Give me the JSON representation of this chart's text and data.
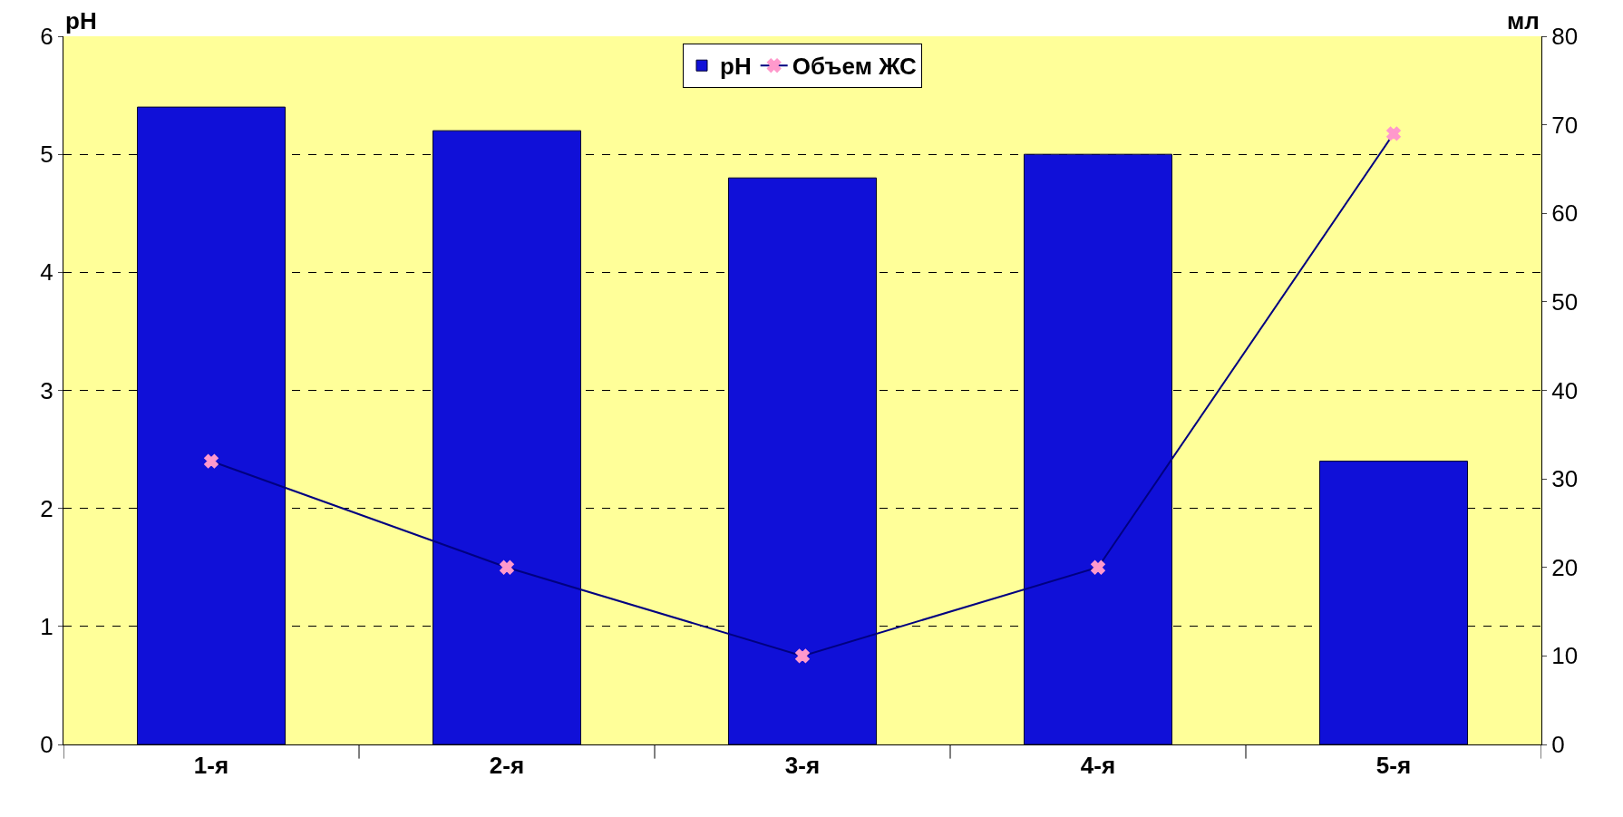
{
  "chart_data": {
    "type": "bar",
    "categories": [
      "1-я",
      "2-я",
      "3-я",
      "4-я",
      "5-я"
    ],
    "ylabel": "pH",
    "y2label": "мл",
    "series": [
      {
        "name": "pH",
        "color": "#1010d8",
        "values": [
          5.4,
          5.2,
          4.8,
          5.0,
          2.4
        ]
      },
      {
        "name": "Объем ЖС",
        "type": "line",
        "axis": "y2",
        "color": "#000080",
        "marker": "cross",
        "values": [
          32,
          20,
          10,
          20,
          69
        ]
      }
    ],
    "ylim": [
      0,
      6
    ],
    "yticks": [
      0,
      1,
      2,
      3,
      4,
      5,
      6
    ],
    "y2lim": [
      0,
      80
    ],
    "y2ticks": [
      0,
      10,
      20,
      30,
      40,
      50,
      60,
      70,
      80
    ],
    "grid": "y",
    "legend": "top"
  }
}
